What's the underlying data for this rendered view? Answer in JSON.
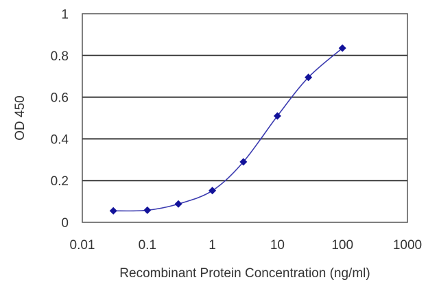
{
  "chart_data": {
    "type": "scatter",
    "x_scale": "log",
    "xlabel": "Recombinant Protein Concentration (ng/ml)",
    "ylabel": "OD 450",
    "xlim": [
      0.01,
      1000
    ],
    "ylim": [
      0,
      1
    ],
    "x_ticks": [
      "0.01",
      "0.1",
      "1",
      "10",
      "100",
      "1000"
    ],
    "y_ticks": [
      "0",
      "0.2",
      "0.4",
      "0.6",
      "0.8",
      "1"
    ],
    "grid": "horizontal",
    "series": [
      {
        "color": "#12129a",
        "line_color": "#3b3bb0",
        "x": [
          0.03,
          0.1,
          0.3,
          1,
          3,
          10,
          30,
          100
        ],
        "y": [
          0.055,
          0.058,
          0.088,
          0.152,
          0.29,
          0.51,
          0.695,
          0.835
        ]
      }
    ]
  }
}
